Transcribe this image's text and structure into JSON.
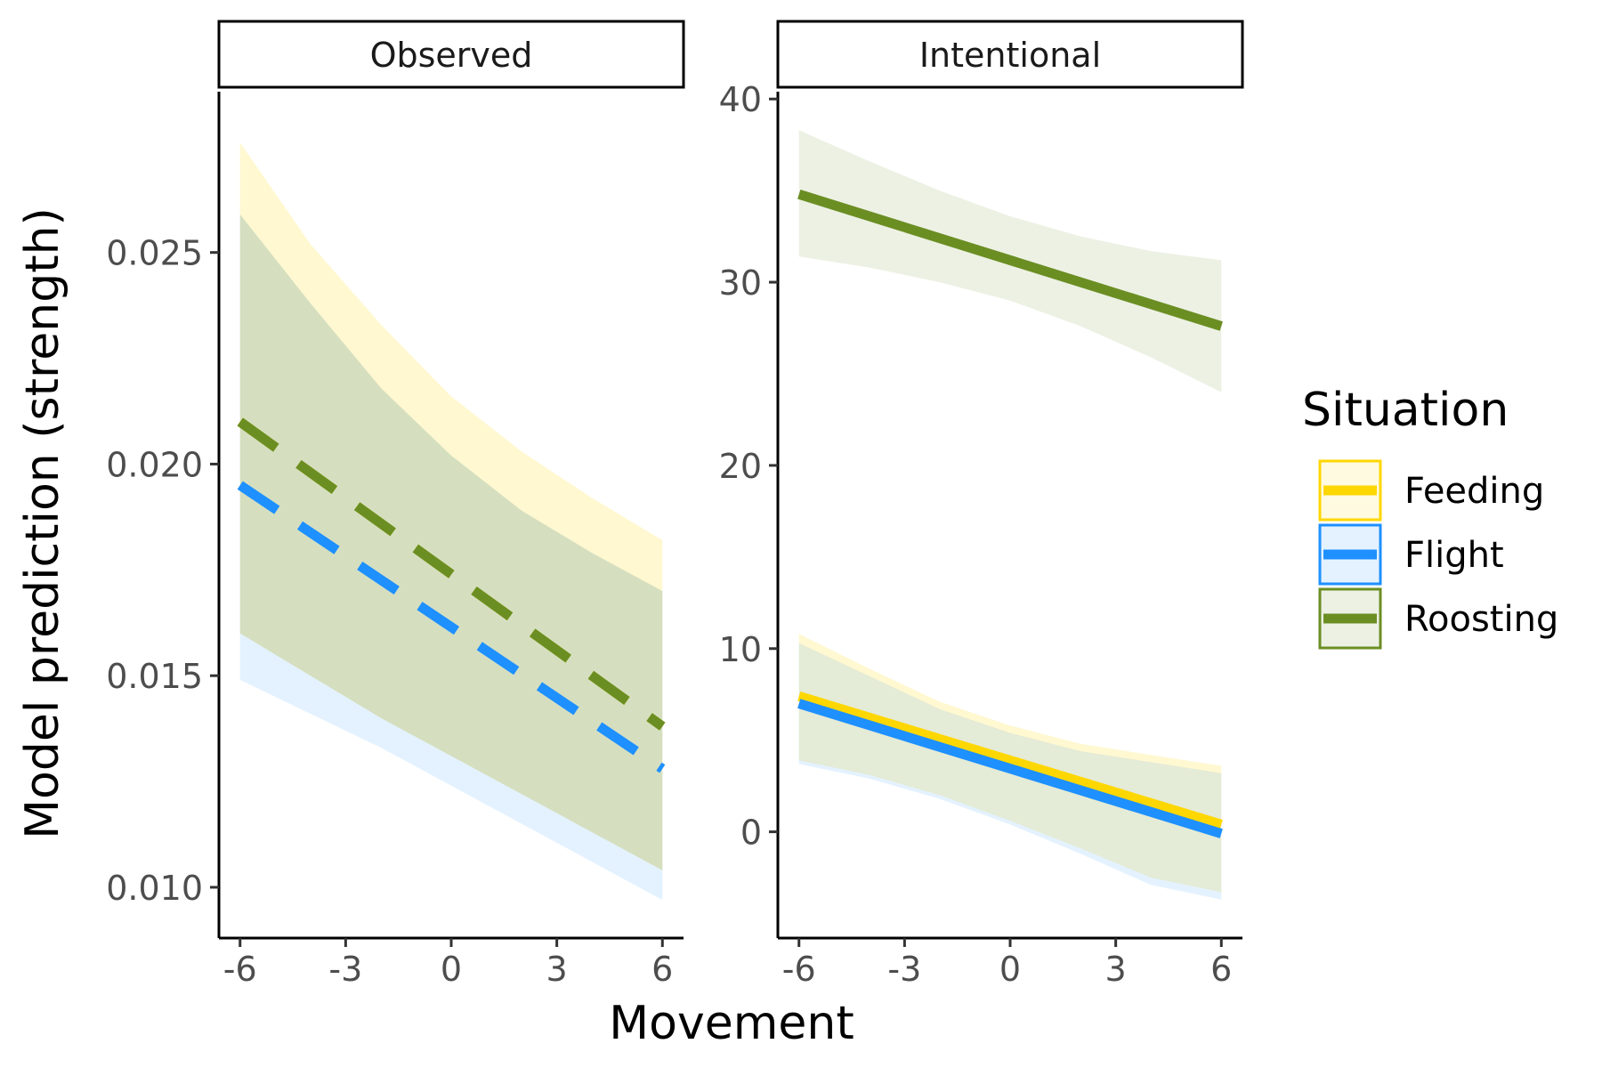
{
  "chart_data": {
    "type": "line",
    "xlabel": "Movement",
    "ylabel": "Model prediction (strength)",
    "legend": {
      "title": "Situation",
      "position": "right",
      "entries": [
        {
          "name": "Feeding",
          "color": "#FFD700"
        },
        {
          "name": "Flight",
          "color": "#1E90FF"
        },
        {
          "name": "Roosting",
          "color": "#6B8E23"
        }
      ]
    },
    "grid": false,
    "panels": [
      {
        "strip": "Observed",
        "xlim": [
          -6.6,
          6.6
        ],
        "ylim": [
          0.0088,
          0.0288
        ],
        "xticks": [
          -6,
          -3,
          0,
          3,
          6
        ],
        "xtick_labels": [
          "-6",
          "-3",
          "0",
          "3",
          "6"
        ],
        "yticks": [
          0.01,
          0.015,
          0.02,
          0.025
        ],
        "ytick_labels": [
          "0.010",
          "0.015",
          "0.020",
          "0.025"
        ],
        "line_style": "dashed",
        "series": [
          {
            "name": "Feeding",
            "color": "#FFD700",
            "x": [
              -6,
              6
            ],
            "y": [
              0.021,
              0.0138
            ],
            "band_x": [
              -6,
              -4,
              -2,
              0,
              2,
              4,
              6
            ],
            "band_lower": [
              0.016,
              0.015,
              0.014,
              0.0131,
              0.0122,
              0.0113,
              0.0104
            ],
            "band_upper": [
              0.0276,
              0.0252,
              0.0233,
              0.0216,
              0.0203,
              0.0192,
              0.0182
            ]
          },
          {
            "name": "Flight",
            "color": "#1E90FF",
            "x": [
              -6,
              6
            ],
            "y": [
              0.0195,
              0.0128
            ],
            "band_x": [
              -6,
              -4,
              -2,
              0,
              2,
              4,
              6
            ],
            "band_lower": [
              0.0149,
              0.0141,
              0.0133,
              0.0124,
              0.0115,
              0.0106,
              0.0097
            ],
            "band_upper": [
              0.0259,
              0.0238,
              0.0218,
              0.0202,
              0.0189,
              0.0179,
              0.017
            ]
          },
          {
            "name": "Roosting",
            "color": "#6B8E23",
            "x": [
              -6,
              6
            ],
            "y": [
              0.021,
              0.0138
            ],
            "band_x": [
              -6,
              -4,
              -2,
              0,
              2,
              4,
              6
            ],
            "band_lower": [
              0.016,
              0.015,
              0.014,
              0.0131,
              0.0122,
              0.0113,
              0.0104
            ],
            "band_upper": [
              0.0259,
              0.0238,
              0.0218,
              0.0202,
              0.0189,
              0.0179,
              0.017
            ]
          }
        ]
      },
      {
        "strip": "Intentional",
        "xlim": [
          -6.6,
          6.6
        ],
        "ylim": [
          -5.8,
          40.4
        ],
        "xticks": [
          -6,
          -3,
          0,
          3,
          6
        ],
        "xtick_labels": [
          "-6",
          "-3",
          "0",
          "3",
          "6"
        ],
        "yticks": [
          0,
          10,
          20,
          30,
          40
        ],
        "ytick_labels": [
          "0",
          "10",
          "20",
          "30",
          "40"
        ],
        "line_style": "solid",
        "series": [
          {
            "name": "Feeding",
            "color": "#FFD700",
            "x": [
              -6,
              6
            ],
            "y": [
              7.4,
              0.4
            ],
            "band_x": [
              -6,
              -4,
              -2,
              0,
              2,
              4,
              6
            ],
            "band_lower": [
              3.9,
              3.1,
              2.0,
              0.6,
              -0.9,
              -2.5,
              -3.3
            ],
            "band_upper": [
              10.8,
              8.9,
              7.1,
              5.8,
              4.8,
              4.2,
              3.6
            ]
          },
          {
            "name": "Flight",
            "color": "#1E90FF",
            "x": [
              -6,
              6
            ],
            "y": [
              7.0,
              -0.1
            ],
            "band_x": [
              -6,
              -4,
              -2,
              0,
              2,
              4,
              6
            ],
            "band_lower": [
              3.7,
              2.9,
              1.8,
              0.4,
              -1.2,
              -2.9,
              -3.7
            ],
            "band_upper": [
              10.3,
              8.5,
              6.7,
              5.4,
              4.4,
              3.8,
              3.2
            ]
          },
          {
            "name": "Roosting",
            "color": "#6B8E23",
            "x": [
              -6,
              6
            ],
            "y": [
              34.8,
              27.6
            ],
            "band_x": [
              -6,
              -4,
              -2,
              0,
              2,
              4,
              6
            ],
            "band_lower": [
              31.4,
              30.8,
              30.0,
              29.0,
              27.6,
              25.9,
              24.0
            ],
            "band_upper": [
              38.3,
              36.6,
              35.0,
              33.6,
              32.5,
              31.7,
              31.2
            ]
          }
        ]
      }
    ]
  }
}
